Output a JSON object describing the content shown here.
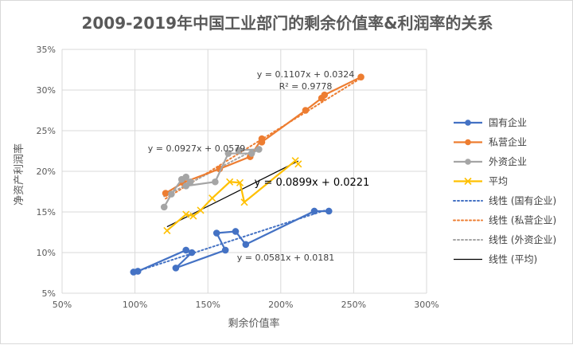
{
  "chart_data": {
    "type": "scatter",
    "title": "2009-2019年中国工业部门的剩余价值率&利润率的关系",
    "xlabel": "剩余价值率",
    "ylabel": "净资产利润率",
    "xlim": [
      0.5,
      3.0
    ],
    "ylim": [
      0.05,
      0.35
    ],
    "x_ticks": [
      "50%",
      "100%",
      "150%",
      "200%",
      "250%",
      "300%"
    ],
    "y_ticks": [
      "5%",
      "10%",
      "15%",
      "20%",
      "25%",
      "30%",
      "35%"
    ],
    "grid": true,
    "legend_position": "right",
    "series": [
      {
        "name": "国有企业",
        "color": "#4472c4",
        "marker": "circle",
        "points": [
          [
            0.99,
            0.076
          ],
          [
            1.02,
            0.077
          ],
          [
            1.35,
            0.103
          ],
          [
            1.39,
            0.1
          ],
          [
            1.28,
            0.081
          ],
          [
            1.62,
            0.103
          ],
          [
            1.56,
            0.124
          ],
          [
            1.69,
            0.126
          ],
          [
            1.76,
            0.11
          ],
          [
            2.23,
            0.151
          ],
          [
            2.33,
            0.151
          ]
        ]
      },
      {
        "name": "私营企业",
        "color": "#ed7d31",
        "marker": "circle",
        "points": [
          [
            1.21,
            0.173
          ],
          [
            1.33,
            0.186
          ],
          [
            1.58,
            0.203
          ],
          [
            1.79,
            0.218
          ],
          [
            1.87,
            0.24
          ],
          [
            1.87,
            0.236
          ],
          [
            2.17,
            0.275
          ],
          [
            2.28,
            0.29
          ],
          [
            2.3,
            0.294
          ],
          [
            2.55,
            0.316
          ]
        ]
      },
      {
        "name": "外资企业",
        "color": "#a5a5a5",
        "marker": "circle",
        "points": [
          [
            1.2,
            0.156
          ],
          [
            1.25,
            0.172
          ],
          [
            1.32,
            0.19
          ],
          [
            1.35,
            0.193
          ],
          [
            1.38,
            0.187
          ],
          [
            1.35,
            0.182
          ],
          [
            1.55,
            0.187
          ],
          [
            1.64,
            0.222
          ],
          [
            1.8,
            0.222
          ],
          [
            1.85,
            0.227
          ],
          [
            1.71,
            0.226
          ]
        ]
      },
      {
        "name": "平均",
        "color": "#ffc000",
        "marker": "x",
        "points": [
          [
            1.22,
            0.127
          ],
          [
            1.35,
            0.147
          ],
          [
            1.4,
            0.145
          ],
          [
            1.45,
            0.152
          ],
          [
            1.53,
            0.167
          ],
          [
            1.65,
            0.187
          ],
          [
            1.72,
            0.186
          ],
          [
            1.75,
            0.162
          ],
          [
            2.1,
            0.213
          ],
          [
            2.12,
            0.209
          ]
        ]
      }
    ],
    "trendlines": [
      {
        "name": "线性 (国有企业)",
        "color": "#4472c4",
        "style": "dotted",
        "slope": 0.0581,
        "intercept": 0.0181,
        "x_range": [
          0.99,
          2.33
        ]
      },
      {
        "name": "线性 (私营企业)",
        "color": "#ed7d31",
        "style": "dotted",
        "slope": 0.1107,
        "intercept": 0.0324,
        "x_range": [
          1.21,
          2.55
        ]
      },
      {
        "name": "线性 (外资企业)",
        "color": "#a5a5a5",
        "style": "dotted",
        "slope": 0.0927,
        "intercept": 0.0579,
        "x_range": [
          1.2,
          1.85
        ]
      },
      {
        "name": "线性 (平均)",
        "color": "#000000",
        "style": "solid",
        "slope": 0.0899,
        "intercept": 0.0221,
        "x_range": [
          1.22,
          2.12
        ]
      }
    ],
    "annotations": [
      {
        "id": "ann-private-eq",
        "text": "y = 0.1107x + 0.0324"
      },
      {
        "id": "ann-private-r2",
        "text": "R² = 0.9778"
      },
      {
        "id": "ann-foreign-eq",
        "text": "y = 0.0927x + 0.0579"
      },
      {
        "id": "ann-avg-eq",
        "text": "y = 0.0899x + 0.0221"
      },
      {
        "id": "ann-state-eq",
        "text": "y = 0.0581x + 0.0181"
      }
    ]
  }
}
